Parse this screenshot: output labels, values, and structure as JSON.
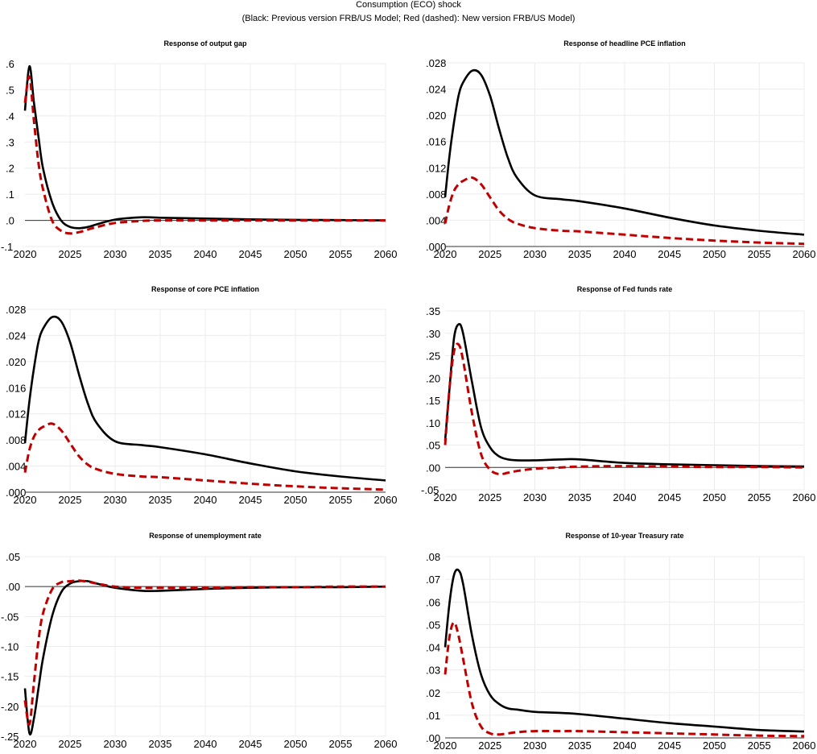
{
  "title": "Consumption (ECO) shock",
  "subtitle": "(Black: Previous version FRB/US Model; Red (dashed): New version FRB/US Model)",
  "colors": {
    "previous": "#000000",
    "new": "#c00000",
    "grid": "#ececec"
  },
  "chart_data": [
    {
      "type": "line",
      "title": "Response of output gap",
      "x": [
        2020,
        2020.5,
        2021,
        2021.5,
        2022,
        2023,
        2024,
        2025,
        2026,
        2027,
        2028,
        2030,
        2033,
        2035,
        2040,
        2045,
        2050,
        2055,
        2060
      ],
      "xticks": [
        "2020",
        "2025",
        "2030",
        "2035",
        "2040",
        "2045",
        "2050",
        "2055",
        "2060"
      ],
      "xlim": [
        2020,
        2060
      ],
      "ylim": [
        -0.1,
        0.6
      ],
      "yticks": [
        0.6,
        0.5,
        0.4,
        0.3,
        0.2,
        0.1,
        0.0,
        -0.1
      ],
      "ytick_labels": [
        ".6",
        ".5",
        ".4",
        ".3",
        ".2",
        ".1",
        ".0",
        "-.1"
      ],
      "grid": true,
      "series": [
        {
          "style": "solid-black",
          "values": [
            0.42,
            0.59,
            0.45,
            0.32,
            0.2,
            0.07,
            0.0,
            -0.025,
            -0.03,
            -0.025,
            -0.015,
            0.003,
            0.012,
            0.01,
            0.007,
            0.004,
            0.002,
            0.001,
            0.0
          ]
        },
        {
          "style": "dashed-red",
          "values": [
            0.45,
            0.55,
            0.38,
            0.22,
            0.12,
            0.0,
            -0.04,
            -0.05,
            -0.045,
            -0.035,
            -0.025,
            -0.01,
            -0.002,
            0.0,
            0.0,
            0.0,
            0.0,
            0.0,
            0.0
          ]
        }
      ]
    },
    {
      "type": "line",
      "title": "Response of headline PCE inflation",
      "x": [
        2020,
        2020.5,
        2021,
        2021.5,
        2022,
        2023,
        2024,
        2025,
        2026,
        2027,
        2028,
        2030,
        2033,
        2035,
        2040,
        2045,
        2050,
        2055,
        2060
      ],
      "xticks": [
        "2020",
        "2025",
        "2030",
        "2035",
        "2040",
        "2045",
        "2050",
        "2055",
        "2060"
      ],
      "xlim": [
        2020,
        2060
      ],
      "ylim": [
        0,
        0.028
      ],
      "yticks": [
        0.028,
        0.024,
        0.02,
        0.016,
        0.012,
        0.008,
        0.004,
        0.0
      ],
      "ytick_labels": [
        ".028",
        ".024",
        ".020",
        ".016",
        ".012",
        ".008",
        ".004",
        ".000"
      ],
      "grid": true,
      "series": [
        {
          "style": "solid-black",
          "values": [
            0.0075,
            0.014,
            0.019,
            0.023,
            0.025,
            0.0268,
            0.0262,
            0.023,
            0.018,
            0.0135,
            0.0105,
            0.0078,
            0.0072,
            0.0069,
            0.0058,
            0.0044,
            0.0032,
            0.0024,
            0.0018
          ]
        },
        {
          "style": "dashed-red",
          "values": [
            0.0035,
            0.0065,
            0.0085,
            0.0095,
            0.01,
            0.0105,
            0.0095,
            0.0075,
            0.0055,
            0.0042,
            0.0035,
            0.0028,
            0.0024,
            0.0023,
            0.0018,
            0.0013,
            0.0009,
            0.0006,
            0.0004
          ]
        }
      ]
    },
    {
      "type": "line",
      "title": "Response of core PCE inflation",
      "x": [
        2020,
        2020.5,
        2021,
        2021.5,
        2022,
        2023,
        2024,
        2025,
        2026,
        2027,
        2028,
        2030,
        2033,
        2035,
        2040,
        2045,
        2050,
        2055,
        2060
      ],
      "xticks": [
        "2020",
        "2025",
        "2030",
        "2035",
        "2040",
        "2045",
        "2050",
        "2055",
        "2060"
      ],
      "xlim": [
        2020,
        2060
      ],
      "ylim": [
        0,
        0.028
      ],
      "yticks": [
        0.028,
        0.024,
        0.02,
        0.016,
        0.012,
        0.008,
        0.004,
        0.0
      ],
      "ytick_labels": [
        ".028",
        ".024",
        ".020",
        ".016",
        ".012",
        ".008",
        ".004",
        ".000"
      ],
      "grid": true,
      "series": [
        {
          "style": "solid-black",
          "values": [
            0.0075,
            0.014,
            0.019,
            0.023,
            0.025,
            0.0268,
            0.0262,
            0.023,
            0.018,
            0.0135,
            0.0105,
            0.0078,
            0.0072,
            0.0069,
            0.0058,
            0.0044,
            0.0032,
            0.0024,
            0.0018
          ]
        },
        {
          "style": "dashed-red",
          "values": [
            0.003,
            0.0065,
            0.0085,
            0.0095,
            0.01,
            0.0105,
            0.0095,
            0.0075,
            0.0055,
            0.0042,
            0.0035,
            0.0028,
            0.0024,
            0.0023,
            0.0018,
            0.0013,
            0.0009,
            0.0006,
            0.0004
          ]
        }
      ]
    },
    {
      "type": "line",
      "title": "Response of Fed funds rate",
      "x": [
        2020,
        2020.5,
        2021,
        2021.5,
        2022,
        2023,
        2024,
        2025,
        2026,
        2027,
        2028,
        2030,
        2033,
        2035,
        2040,
        2045,
        2050,
        2055,
        2060
      ],
      "xticks": [
        "2020",
        "2025",
        "2030",
        "2035",
        "2040",
        "2045",
        "2050",
        "2055",
        "2060"
      ],
      "xlim": [
        2020,
        2060
      ],
      "ylim": [
        -0.05,
        0.35
      ],
      "yticks": [
        0.35,
        0.3,
        0.25,
        0.2,
        0.15,
        0.1,
        0.05,
        0.0,
        -0.05
      ],
      "ytick_labels": [
        ".35",
        ".30",
        ".25",
        ".20",
        ".15",
        ".10",
        ".05",
        ".00",
        "-.05"
      ],
      "grid": true,
      "series": [
        {
          "style": "solid-black",
          "values": [
            0.06,
            0.18,
            0.29,
            0.32,
            0.3,
            0.19,
            0.09,
            0.045,
            0.025,
            0.018,
            0.016,
            0.016,
            0.018,
            0.018,
            0.01,
            0.007,
            0.005,
            0.003,
            0.002
          ]
        },
        {
          "style": "dashed-red",
          "values": [
            0.05,
            0.18,
            0.26,
            0.275,
            0.24,
            0.12,
            0.03,
            -0.005,
            -0.015,
            -0.012,
            -0.008,
            -0.003,
            0.0,
            0.002,
            0.003,
            0.002,
            0.001,
            0.001,
            0.0
          ]
        }
      ]
    },
    {
      "type": "line",
      "title": "Response of unemployment rate",
      "x": [
        2020,
        2020.5,
        2021,
        2021.5,
        2022,
        2023,
        2024,
        2025,
        2026,
        2027,
        2028,
        2030,
        2033,
        2035,
        2040,
        2045,
        2050,
        2055,
        2060
      ],
      "xticks": [
        "2020",
        "2025",
        "2030",
        "2035",
        "2040",
        "2045",
        "2050",
        "2055",
        "2060"
      ],
      "xlim": [
        2020,
        2060
      ],
      "ylim": [
        -0.25,
        0.05
      ],
      "yticks": [
        0.05,
        0.0,
        -0.05,
        -0.1,
        -0.15,
        -0.2,
        -0.25
      ],
      "ytick_labels": [
        ".05",
        ".00",
        "-.05",
        "-.10",
        "-.15",
        "-.20",
        "-.25"
      ],
      "grid": true,
      "series": [
        {
          "style": "solid-black",
          "values": [
            -0.17,
            -0.245,
            -0.22,
            -0.17,
            -0.12,
            -0.05,
            -0.01,
            0.005,
            0.009,
            0.009,
            0.005,
            -0.002,
            -0.007,
            -0.007,
            -0.004,
            -0.002,
            -0.001,
            -0.001,
            0.0
          ]
        },
        {
          "style": "dashed-red",
          "values": [
            -0.19,
            -0.23,
            -0.16,
            -0.09,
            -0.045,
            -0.005,
            0.007,
            0.009,
            0.01,
            0.008,
            0.005,
            0.0,
            -0.002,
            -0.002,
            -0.002,
            -0.001,
            -0.001,
            0.0,
            0.0
          ]
        }
      ]
    },
    {
      "type": "line",
      "title": "Response of 10-year Treasury rate",
      "x": [
        2020,
        2020.5,
        2021,
        2021.5,
        2022,
        2023,
        2024,
        2025,
        2026,
        2027,
        2028,
        2030,
        2033,
        2035,
        2040,
        2045,
        2050,
        2055,
        2060
      ],
      "xticks": [
        "2020",
        "2025",
        "2030",
        "2035",
        "2040",
        "2045",
        "2050",
        "2055",
        "2060"
      ],
      "xlim": [
        2020,
        2060
      ],
      "ylim": [
        0,
        0.08
      ],
      "yticks": [
        0.08,
        0.07,
        0.06,
        0.05,
        0.04,
        0.03,
        0.02,
        0.01,
        0.0
      ],
      "ytick_labels": [
        ".08",
        ".07",
        ".06",
        ".05",
        ".04",
        ".03",
        ".02",
        ".01",
        ".00"
      ],
      "grid": true,
      "series": [
        {
          "style": "solid-black",
          "values": [
            0.04,
            0.06,
            0.072,
            0.074,
            0.068,
            0.045,
            0.028,
            0.019,
            0.015,
            0.013,
            0.0125,
            0.0115,
            0.011,
            0.0105,
            0.0085,
            0.0065,
            0.005,
            0.0035,
            0.0028
          ]
        },
        {
          "style": "dashed-red",
          "values": [
            0.028,
            0.045,
            0.051,
            0.045,
            0.035,
            0.015,
            0.005,
            0.002,
            0.0015,
            0.002,
            0.0025,
            0.003,
            0.003,
            0.003,
            0.0025,
            0.002,
            0.0015,
            0.001,
            0.0008
          ]
        }
      ]
    }
  ]
}
